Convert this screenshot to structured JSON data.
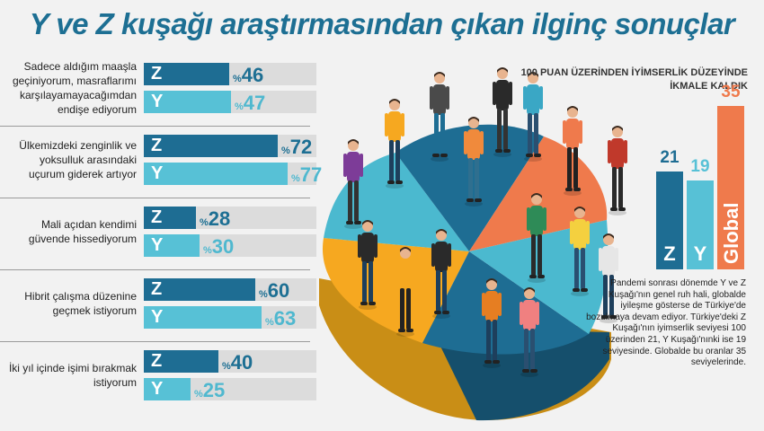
{
  "title": "Y ve Z kuşağı araştırmasından çıkan ilginç sonuçlar",
  "colors": {
    "z": "#1e6d93",
    "y": "#57c1d6",
    "global": "#ef7a4c",
    "title": "#1d6f93"
  },
  "questions": [
    {
      "label": "Sadece aldığım maaşla geçiniyorum, masraflarımı karşılayamayacağımdan endişe ediyorum",
      "z": {
        "letter": "Z",
        "sym": "%",
        "value": 46
      },
      "y": {
        "letter": "Y",
        "sym": "%",
        "value": 47
      }
    },
    {
      "label": "Ülkemizdeki zenginlik ve yoksulluk arasındaki uçurum giderek artıyor",
      "z": {
        "letter": "Z",
        "sym": "%",
        "value": 72
      },
      "y": {
        "letter": "Y",
        "sym": "%",
        "value": 77
      }
    },
    {
      "label": "Mali açıdan kendimi güvende hissediyorum",
      "z": {
        "letter": "Z",
        "sym": "%",
        "value": 28
      },
      "y": {
        "letter": "Y",
        "sym": "%",
        "value": 30
      }
    },
    {
      "label": "Hibrit çalışma düzenine geçmek istiyorum",
      "z": {
        "letter": "Z",
        "sym": "%",
        "value": 60
      },
      "y": {
        "letter": "Y",
        "sym": "%",
        "value": 63
      }
    },
    {
      "label": "İki yıl içinde işimi bırakmak istiyorum",
      "z": {
        "letter": "Z",
        "sym": "%",
        "value": 40
      },
      "y": {
        "letter": "Y",
        "sym": "%",
        "value": 25
      }
    }
  ],
  "optimism": {
    "title": "100 PUAN ÜZERİNDEN İYİMSERLİK DÜZEYİNDE İKMALE KALDIK",
    "bars": [
      {
        "letter": "Z",
        "value": 21
      },
      {
        "letter": "Y",
        "value": 19
      },
      {
        "letter": "Global",
        "value": 35
      }
    ]
  },
  "note": "Pandemi sonrası dönemde Y ve Z Kuşağı'nın genel ruh hali, globalde iyileşme gösterse de Türkiye'de bozulmaya devam ediyor. Türkiye'deki Z Kuşağı'nın iyimserlik seviyesi 100 üzerinden 21, Y Kuşağı'nınki ise 19 seviyesinde. Globalde bu oranlar 35 seviyelerinde.",
  "chart_data": [
    {
      "type": "bar",
      "title": "Y ve Z kuşağı araştırmasından çıkan ilginç sonuçlar",
      "categories": [
        "Sadece aldığım maaşla geçiniyorum, masraflarımı karşılayamayacağımdan endişe ediyorum",
        "Ülkemizdeki zenginlik ve yoksulluk arasındaki uçurum giderek artıyor",
        "Mali açıdan kendimi güvende hissediyorum",
        "Hibrit çalışma düzenine geçmek istiyorum",
        "İki yıl içinde işimi bırakmak istiyorum"
      ],
      "series": [
        {
          "name": "Z",
          "values": [
            46,
            72,
            28,
            60,
            40
          ]
        },
        {
          "name": "Y",
          "values": [
            47,
            77,
            30,
            63,
            25
          ]
        }
      ],
      "unit": "%",
      "orientation": "horizontal",
      "xlim": [
        0,
        100
      ]
    },
    {
      "type": "bar",
      "title": "100 PUAN ÜZERİNDEN İYİMSERLİK DÜZEYİNDE İKMALE KALDIK",
      "categories": [
        "Z",
        "Y",
        "Global"
      ],
      "values": [
        21,
        19,
        35
      ],
      "ylim": [
        0,
        100
      ]
    }
  ]
}
